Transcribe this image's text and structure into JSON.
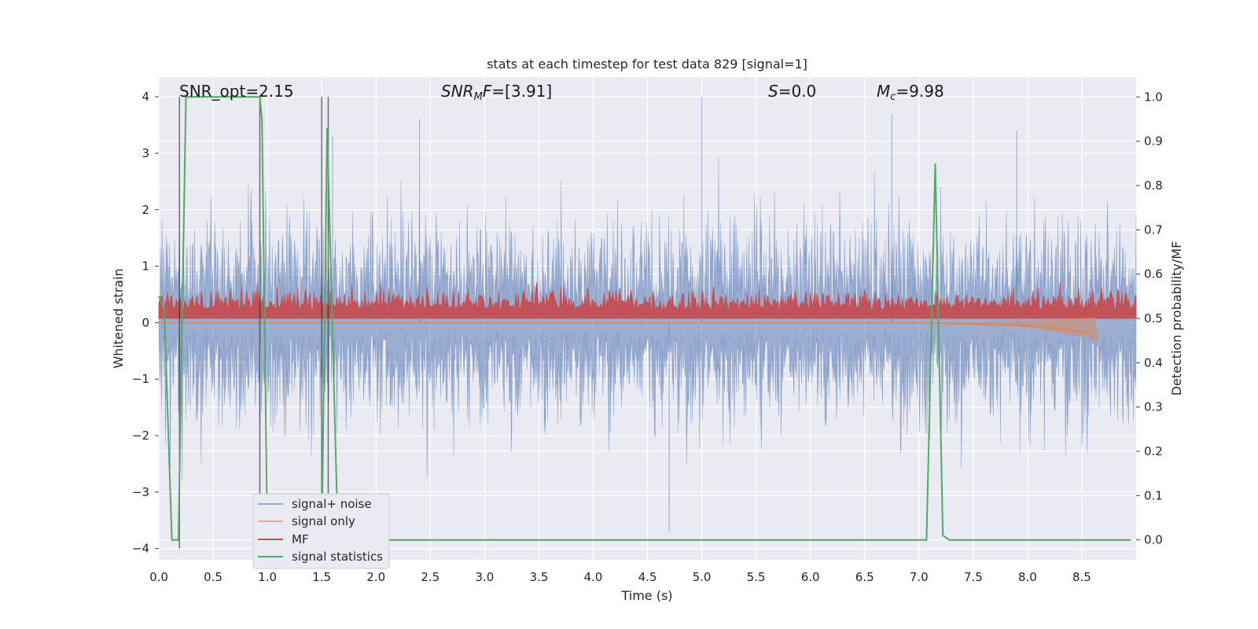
{
  "chart_data": {
    "type": "line",
    "title": "stats at each timestep for test data 829 [signal=1]",
    "xlabel": "Time (s)",
    "ylabel": "Whitened strain",
    "ylabel_right": "Detection probability/MF",
    "xlim": [
      0.0,
      9.0
    ],
    "ylim": [
      -4.2,
      4.35
    ],
    "ylim_right": [
      -0.045,
      1.045
    ],
    "x_ticks": [
      "0.0",
      "0.5",
      "1.0",
      "1.5",
      "2.0",
      "2.5",
      "3.0",
      "3.5",
      "4.0",
      "4.5",
      "5.0",
      "5.5",
      "6.0",
      "6.5",
      "7.0",
      "7.5",
      "8.0",
      "8.5"
    ],
    "y_ticks": [
      "4",
      "3",
      "2",
      "1",
      "0",
      "−1",
      "−2",
      "−3",
      "−4"
    ],
    "y_ticks_right": [
      "1.0",
      "0.9",
      "0.8",
      "0.7",
      "0.6",
      "0.5",
      "0.4",
      "0.3",
      "0.2",
      "0.1",
      "0.0"
    ],
    "grid": true,
    "legend_position": "lower-left",
    "annotations": [
      {
        "text": "SNR_opt=2.15",
        "x": 0.2,
        "y": 4.1
      },
      {
        "text": "SNRMF=[3.91]",
        "x": 2.6,
        "y": 4.1
      },
      {
        "text": "S=0.0",
        "x": 5.6,
        "y": 4.1
      },
      {
        "text": "Mc=9.98",
        "x": 6.6,
        "y": 4.1
      }
    ],
    "series": [
      {
        "name": "signal+ noise",
        "color": "#4c72b0",
        "amplitude_range": [
          -3.7,
          4.0
        ]
      },
      {
        "name": "signal only",
        "color": "#dd8452",
        "approx_values": {
          "x": [
            0,
            7.0,
            8.0,
            8.5,
            8.65
          ],
          "y": [
            0,
            0,
            -0.05,
            -0.15,
            -0.3
          ]
        }
      },
      {
        "name": "MF",
        "color": "#c44e52",
        "range_right_axis": [
          0.5,
          0.6
        ]
      },
      {
        "name": "signal statistics",
        "color": "#55a868",
        "x": [
          0.0,
          0.05,
          0.12,
          0.18,
          0.25,
          0.93,
          0.95,
          1.0,
          1.08,
          1.5,
          1.55,
          1.65,
          7.07,
          7.15,
          7.22,
          7.28,
          8.95
        ],
        "y": [
          0.55,
          0.52,
          0.0,
          0.0,
          1.0,
          1.0,
          0.95,
          0.0,
          0.0,
          0.0,
          0.93,
          0.0,
          0.0,
          0.85,
          0.01,
          0.0,
          0.0
        ]
      }
    ],
    "vertical_lines_x": [
      0.19,
      0.93,
      1.5,
      1.56
    ],
    "colors": {
      "background": "#eaeaf2",
      "grid": "#ffffff",
      "vline": "#333333"
    }
  }
}
